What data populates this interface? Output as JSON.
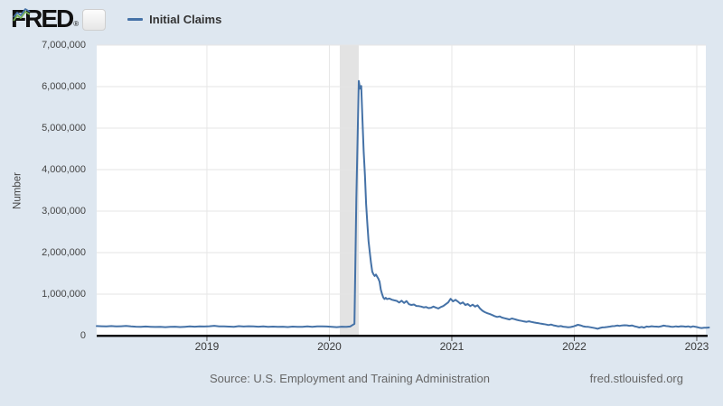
{
  "header": {
    "logo_text": "FRED",
    "registered_mark": "®"
  },
  "legend": {
    "series_label": "Initial Claims"
  },
  "footer": {
    "source_text": "Source: U.S. Employment and Training Administration",
    "site_text": "fred.stlouisfed.org"
  },
  "colors": {
    "background": "#dee7f0",
    "plot_background": "#ffffff",
    "grid": "#e6e6e6",
    "recession_band": "#e3e3e3",
    "line": "#4572a7",
    "axis": "#000000",
    "tick_mark": "#555555",
    "tick_text": "#444444",
    "footer_text": "#666666",
    "logo_green": "#77b255"
  },
  "chart_data": {
    "type": "line",
    "title": "Initial Claims",
    "xlabel": "",
    "ylabel": "Number",
    "ylim": [
      0,
      7000000
    ],
    "x_range_years": [
      2018.1,
      2023.074
    ],
    "grid": true,
    "legend_position": "top-left",
    "ytick_labels": [
      "0",
      "1,000,000",
      "2,000,000",
      "3,000,000",
      "4,000,000",
      "5,000,000",
      "6,000,000",
      "7,000,000"
    ],
    "xtick_years": [
      2019,
      2020,
      2021,
      2022,
      2023
    ],
    "xtick_labels": [
      "2019",
      "2020",
      "2021",
      "2022",
      "2023"
    ],
    "recession_band_years": [
      2020.085,
      2020.24
    ],
    "series": [
      {
        "name": "Initial Claims",
        "color": "#4572a7",
        "units": "Number",
        "points": [
          [
            2018.1,
            231000
          ],
          [
            2018.14,
            226000
          ],
          [
            2018.18,
            222000
          ],
          [
            2018.22,
            230000
          ],
          [
            2018.26,
            221000
          ],
          [
            2018.3,
            226000
          ],
          [
            2018.34,
            232000
          ],
          [
            2018.38,
            222000
          ],
          [
            2018.42,
            216000
          ],
          [
            2018.46,
            213000
          ],
          [
            2018.5,
            220000
          ],
          [
            2018.54,
            214000
          ],
          [
            2018.58,
            208000
          ],
          [
            2018.62,
            213000
          ],
          [
            2018.66,
            205000
          ],
          [
            2018.7,
            210000
          ],
          [
            2018.74,
            215000
          ],
          [
            2018.78,
            207000
          ],
          [
            2018.82,
            212000
          ],
          [
            2018.86,
            221000
          ],
          [
            2018.9,
            216000
          ],
          [
            2018.94,
            224000
          ],
          [
            2018.98,
            220000
          ],
          [
            2019.02,
            226000
          ],
          [
            2019.06,
            237000
          ],
          [
            2019.1,
            224000
          ],
          [
            2019.14,
            221000
          ],
          [
            2019.18,
            217000
          ],
          [
            2019.22,
            212000
          ],
          [
            2019.26,
            228000
          ],
          [
            2019.3,
            219000
          ],
          [
            2019.34,
            226000
          ],
          [
            2019.38,
            221000
          ],
          [
            2019.42,
            216000
          ],
          [
            2019.46,
            222000
          ],
          [
            2019.5,
            214000
          ],
          [
            2019.54,
            218000
          ],
          [
            2019.58,
            211000
          ],
          [
            2019.62,
            215000
          ],
          [
            2019.66,
            207000
          ],
          [
            2019.7,
            217000
          ],
          [
            2019.74,
            212000
          ],
          [
            2019.78,
            214000
          ],
          [
            2019.82,
            223000
          ],
          [
            2019.86,
            212000
          ],
          [
            2019.9,
            224000
          ],
          [
            2019.94,
            221000
          ],
          [
            2019.98,
            220000
          ],
          [
            2020.02,
            212000
          ],
          [
            2020.06,
            204000
          ],
          [
            2020.1,
            215000
          ],
          [
            2020.14,
            211000
          ],
          [
            2020.17,
            219000
          ],
          [
            2020.19,
            256000
          ],
          [
            2020.205,
            282000
          ],
          [
            2020.22,
            3307000
          ],
          [
            2020.24,
            6137000
          ],
          [
            2020.25,
            5950000
          ],
          [
            2020.26,
            6015000
          ],
          [
            2020.27,
            5237000
          ],
          [
            2020.28,
            4442000
          ],
          [
            2020.29,
            3867000
          ],
          [
            2020.3,
            3176000
          ],
          [
            2020.31,
            2687000
          ],
          [
            2020.32,
            2277000
          ],
          [
            2020.33,
            2000000
          ],
          [
            2020.34,
            1757000
          ],
          [
            2020.35,
            1542000
          ],
          [
            2020.36,
            1480000
          ],
          [
            2020.37,
            1437000
          ],
          [
            2020.38,
            1472000
          ],
          [
            2020.39,
            1422000
          ],
          [
            2020.4,
            1370000
          ],
          [
            2020.41,
            1297000
          ],
          [
            2020.42,
            1104000
          ],
          [
            2020.43,
            1006000
          ],
          [
            2020.44,
            918000
          ],
          [
            2020.45,
            882000
          ],
          [
            2020.46,
            910000
          ],
          [
            2020.47,
            880000
          ],
          [
            2020.49,
            893000
          ],
          [
            2020.51,
            866000
          ],
          [
            2020.53,
            851000
          ],
          [
            2020.55,
            837000
          ],
          [
            2020.57,
            797000
          ],
          [
            2020.59,
            842000
          ],
          [
            2020.61,
            787000
          ],
          [
            2020.63,
            832000
          ],
          [
            2020.65,
            757000
          ],
          [
            2020.67,
            740000
          ],
          [
            2020.69,
            751000
          ],
          [
            2020.71,
            716000
          ],
          [
            2020.73,
            711000
          ],
          [
            2020.75,
            700000
          ],
          [
            2020.77,
            680000
          ],
          [
            2020.79,
            690000
          ],
          [
            2020.81,
            662000
          ],
          [
            2020.83,
            672000
          ],
          [
            2020.85,
            700000
          ],
          [
            2020.87,
            676000
          ],
          [
            2020.89,
            655000
          ],
          [
            2020.91,
            690000
          ],
          [
            2020.93,
            714000
          ],
          [
            2020.95,
            756000
          ],
          [
            2020.97,
            800000
          ],
          [
            2020.99,
            888000
          ],
          [
            2021.01,
            826000
          ],
          [
            2021.03,
            862000
          ],
          [
            2021.05,
            820000
          ],
          [
            2021.07,
            770000
          ],
          [
            2021.09,
            800000
          ],
          [
            2021.11,
            740000
          ],
          [
            2021.13,
            760000
          ],
          [
            2021.15,
            710000
          ],
          [
            2021.17,
            745000
          ],
          [
            2021.19,
            700000
          ],
          [
            2021.21,
            730000
          ],
          [
            2021.23,
            655000
          ],
          [
            2021.25,
            600000
          ],
          [
            2021.27,
            566000
          ],
          [
            2021.29,
            540000
          ],
          [
            2021.31,
            520000
          ],
          [
            2021.33,
            495000
          ],
          [
            2021.35,
            470000
          ],
          [
            2021.37,
            450000
          ],
          [
            2021.39,
            462000
          ],
          [
            2021.41,
            435000
          ],
          [
            2021.43,
            420000
          ],
          [
            2021.45,
            405000
          ],
          [
            2021.47,
            390000
          ],
          [
            2021.49,
            412000
          ],
          [
            2021.51,
            398000
          ],
          [
            2021.53,
            380000
          ],
          [
            2021.55,
            365000
          ],
          [
            2021.57,
            355000
          ],
          [
            2021.59,
            342000
          ],
          [
            2021.61,
            333000
          ],
          [
            2021.63,
            345000
          ],
          [
            2021.65,
            330000
          ],
          [
            2021.67,
            318000
          ],
          [
            2021.69,
            306000
          ],
          [
            2021.71,
            298000
          ],
          [
            2021.73,
            288000
          ],
          [
            2021.75,
            278000
          ],
          [
            2021.77,
            268000
          ],
          [
            2021.79,
            255000
          ],
          [
            2021.81,
            268000
          ],
          [
            2021.83,
            248000
          ],
          [
            2021.85,
            238000
          ],
          [
            2021.87,
            222000
          ],
          [
            2021.89,
            230000
          ],
          [
            2021.91,
            215000
          ],
          [
            2021.93,
            208000
          ],
          [
            2021.95,
            200000
          ],
          [
            2021.97,
            207000
          ],
          [
            2021.99,
            220000
          ],
          [
            2022.01,
            240000
          ],
          [
            2022.03,
            261000
          ],
          [
            2022.05,
            248000
          ],
          [
            2022.07,
            225000
          ],
          [
            2022.09,
            215000
          ],
          [
            2022.11,
            214000
          ],
          [
            2022.13,
            202000
          ],
          [
            2022.15,
            192000
          ],
          [
            2022.17,
            181000
          ],
          [
            2022.19,
            166000
          ],
          [
            2022.21,
            185000
          ],
          [
            2022.23,
            197000
          ],
          [
            2022.25,
            202000
          ],
          [
            2022.27,
            208000
          ],
          [
            2022.29,
            218000
          ],
          [
            2022.31,
            229000
          ],
          [
            2022.33,
            231000
          ],
          [
            2022.35,
            244000
          ],
          [
            2022.37,
            235000
          ],
          [
            2022.39,
            245000
          ],
          [
            2022.41,
            251000
          ],
          [
            2022.43,
            248000
          ],
          [
            2022.45,
            237000
          ],
          [
            2022.47,
            245000
          ],
          [
            2022.49,
            226000
          ],
          [
            2022.51,
            213000
          ],
          [
            2022.53,
            196000
          ],
          [
            2022.55,
            209000
          ],
          [
            2022.57,
            193000
          ],
          [
            2022.59,
            219000
          ],
          [
            2022.61,
            214000
          ],
          [
            2022.63,
            226000
          ],
          [
            2022.65,
            219000
          ],
          [
            2022.67,
            217000
          ],
          [
            2022.69,
            214000
          ],
          [
            2022.71,
            226000
          ],
          [
            2022.73,
            241000
          ],
          [
            2022.75,
            231000
          ],
          [
            2022.77,
            225000
          ],
          [
            2022.79,
            216000
          ],
          [
            2022.81,
            214000
          ],
          [
            2022.83,
            223000
          ],
          [
            2022.85,
            216000
          ],
          [
            2022.87,
            225000
          ],
          [
            2022.89,
            221000
          ],
          [
            2022.91,
            216000
          ],
          [
            2022.93,
            223000
          ],
          [
            2022.95,
            206000
          ],
          [
            2022.97,
            223000
          ],
          [
            2023.0,
            206000
          ],
          [
            2023.02,
            192000
          ],
          [
            2023.04,
            183000
          ],
          [
            2023.06,
            191000
          ],
          [
            2023.08,
            192000
          ],
          [
            2023.1,
            195000
          ]
        ]
      }
    ]
  }
}
